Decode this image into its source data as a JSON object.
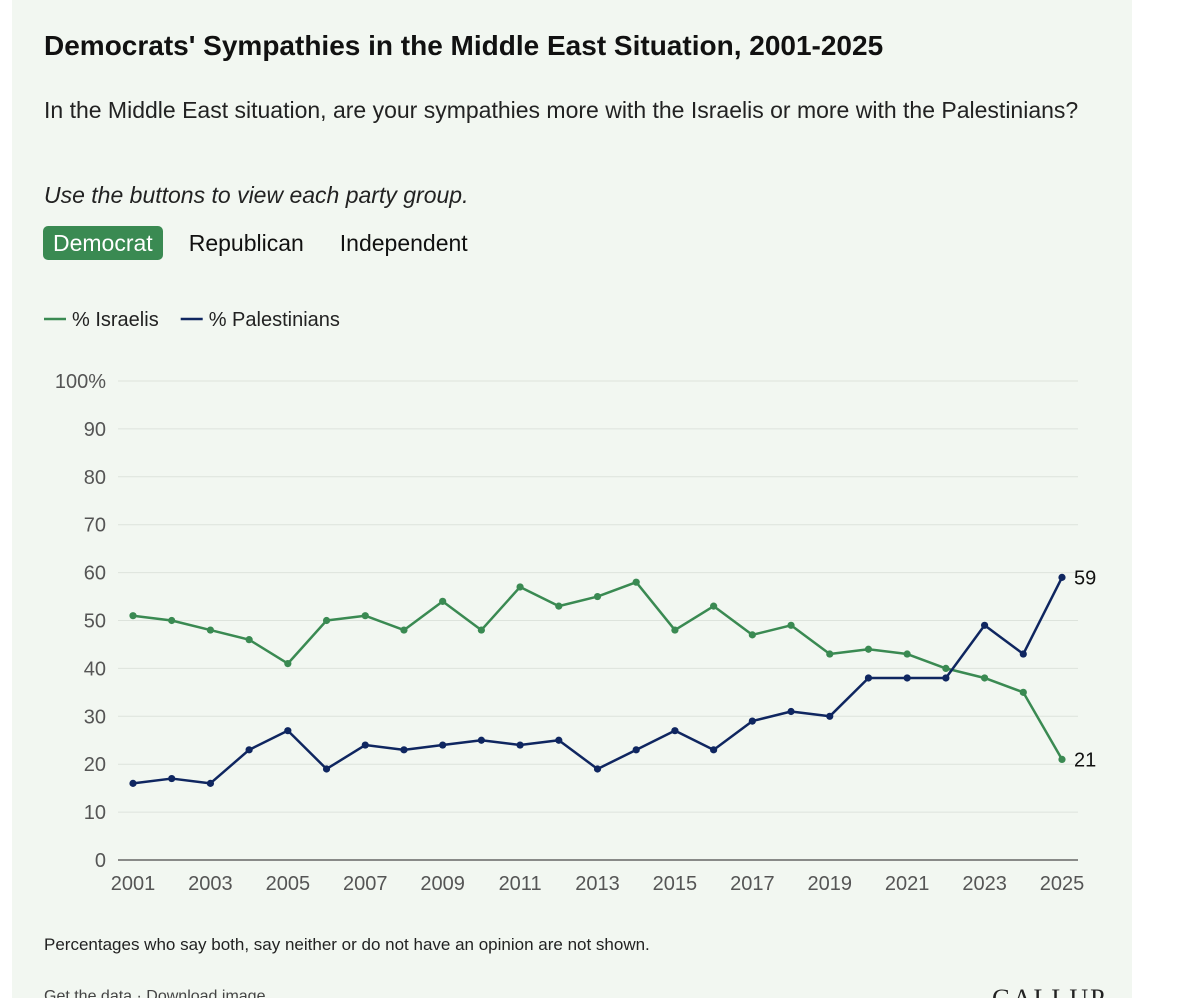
{
  "header": {
    "title": "Democrats' Sympathies in the Middle East Situation, 2001-2025",
    "question": "In the Middle East situation, are your sympathies more with the Israelis or more with the Palestinians?",
    "instruction": "Use the buttons to view each party group."
  },
  "party_buttons": {
    "democrat": "Democrat",
    "republican": "Republican",
    "independent": "Independent",
    "selected": "Democrat"
  },
  "colors": {
    "israelis": "#3a8a52",
    "palestinians": "#0f2660",
    "active_button": "#3a8a52",
    "background": "#f2f7f1"
  },
  "chart_data": {
    "type": "line",
    "title": "Democrats' Sympathies in the Middle East Situation, 2001-2025",
    "xlabel": "",
    "ylabel": "",
    "ylim": [
      0,
      100
    ],
    "y_ticks": [
      "0",
      "10",
      "20",
      "30",
      "40",
      "50",
      "60",
      "70",
      "80",
      "90",
      "100%"
    ],
    "x_ticks": [
      "2001",
      "2003",
      "2005",
      "2007",
      "2009",
      "2011",
      "2013",
      "2015",
      "2017",
      "2019",
      "2021",
      "2023",
      "2025"
    ],
    "x": [
      2001,
      2002,
      2003,
      2004,
      2005,
      2006,
      2007,
      2008,
      2009,
      2010,
      2011,
      2012,
      2013,
      2014,
      2015,
      2016,
      2017,
      2018,
      2019,
      2020,
      2021,
      2022,
      2023,
      2024,
      2025
    ],
    "series": [
      {
        "name": "% Israelis",
        "values": [
          51,
          50,
          48,
          46,
          41,
          50,
          51,
          48,
          54,
          48,
          57,
          53,
          55,
          58,
          48,
          53,
          47,
          49,
          43,
          44,
          43,
          40,
          38,
          35,
          21
        ],
        "end_label": "21"
      },
      {
        "name": "% Palestinians",
        "values": [
          16,
          17,
          16,
          23,
          27,
          19,
          24,
          23,
          24,
          25,
          24,
          25,
          19,
          23,
          27,
          23,
          29,
          31,
          30,
          38,
          38,
          38,
          49,
          43,
          59
        ],
        "end_label": "59"
      }
    ],
    "legend": "top-left",
    "grid": true
  },
  "footer": {
    "note": "Percentages who say both, say neither or do not have an opinion are not shown.",
    "links": "Get the data · Download image",
    "brand": "GALLUP"
  }
}
